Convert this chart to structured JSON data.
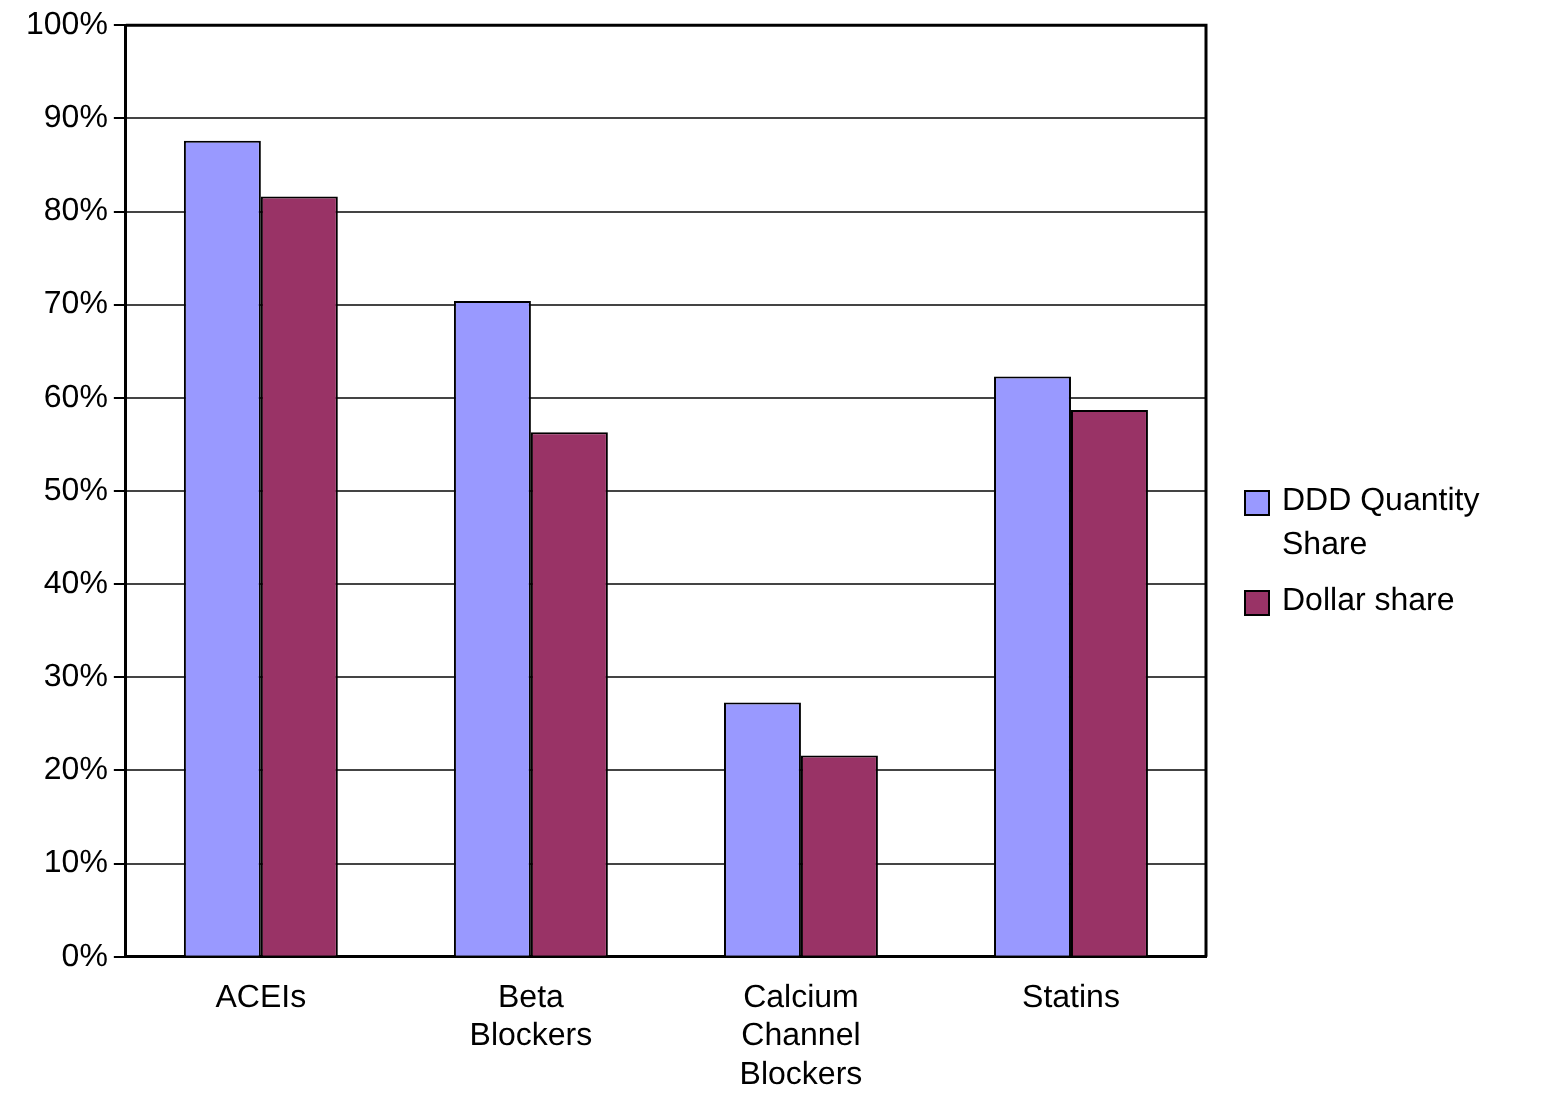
{
  "chart_data": {
    "type": "bar",
    "categories": [
      "ACEIs",
      "Beta Blockers",
      "Calcium Channel Blockers",
      "Statins"
    ],
    "series": [
      {
        "name": "DDD Quantity Share",
        "color": "#9999ff",
        "values": [
          87.6,
          70.4,
          27.3,
          62.3
        ]
      },
      {
        "name": "Dollar share",
        "color": "#993366",
        "values": [
          81.6,
          56.3,
          21.6,
          58.7
        ]
      }
    ],
    "ylim": [
      0,
      100
    ],
    "yticks": [
      {
        "value": 0,
        "label": "0%"
      },
      {
        "value": 10,
        "label": "10%"
      },
      {
        "value": 20,
        "label": "20%"
      },
      {
        "value": 30,
        "label": "30%"
      },
      {
        "value": 40,
        "label": "40%"
      },
      {
        "value": 50,
        "label": "50%"
      },
      {
        "value": 60,
        "label": "60%"
      },
      {
        "value": 70,
        "label": "70%"
      },
      {
        "value": 80,
        "label": "80%"
      },
      {
        "value": 90,
        "label": "90%"
      },
      {
        "value": 100,
        "label": "100%"
      }
    ],
    "grid": "y",
    "legend": "right"
  }
}
